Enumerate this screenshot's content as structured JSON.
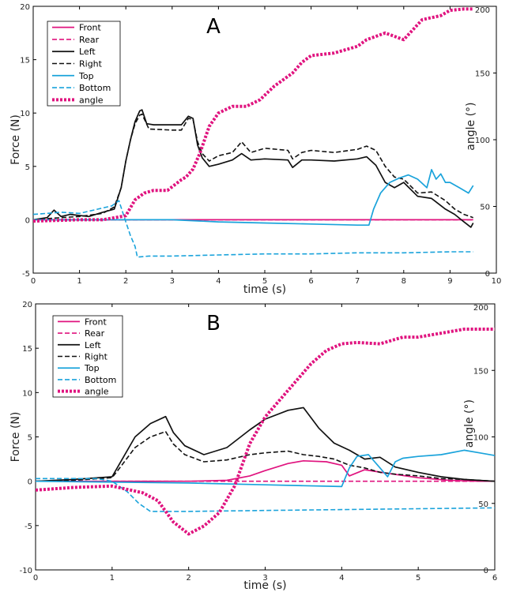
{
  "chart_data": [
    {
      "type": "line",
      "title": "A",
      "xlabel": "time (s)",
      "ylabel": "Force (N)",
      "y2label": "angle (°)",
      "xlim": [
        0,
        10
      ],
      "ylim": [
        -5,
        20
      ],
      "y2lim": [
        0,
        200
      ],
      "xticks": [
        0,
        1,
        2,
        3,
        4,
        5,
        6,
        7,
        8,
        9,
        10
      ],
      "yticks": [
        -5,
        0,
        5,
        10,
        15,
        20
      ],
      "y2ticks": [
        0,
        50,
        100,
        150,
        200
      ],
      "legend_position": "top-left",
      "series": [
        {
          "name": "Front",
          "color": "#e0147f",
          "dash": "solid",
          "axis": "left",
          "x": [
            0,
            1,
            2,
            3,
            4,
            5,
            6,
            7,
            8,
            9,
            9.5
          ],
          "y": [
            0,
            0,
            0,
            0,
            0,
            0,
            0,
            0,
            0,
            0,
            0
          ]
        },
        {
          "name": "Rear",
          "color": "#e0147f",
          "dash": "dashed",
          "axis": "left",
          "x": [
            0,
            1,
            2,
            3,
            4,
            5,
            6,
            7,
            8,
            9,
            9.5
          ],
          "y": [
            0,
            0,
            0,
            0,
            0,
            0,
            0,
            0,
            0,
            0,
            0
          ]
        },
        {
          "name": "Left",
          "color": "#111111",
          "dash": "solid",
          "axis": "left",
          "x": [
            0,
            0.3,
            0.45,
            0.6,
            0.8,
            1.0,
            1.2,
            1.5,
            1.75,
            1.9,
            2.0,
            2.1,
            2.2,
            2.3,
            2.35,
            2.45,
            2.6,
            3.0,
            3.2,
            3.35,
            3.45,
            3.55,
            3.65,
            3.8,
            4.0,
            4.3,
            4.5,
            4.7,
            5.0,
            5.5,
            5.6,
            5.8,
            6.0,
            6.5,
            7.0,
            7.2,
            7.4,
            7.6,
            7.8,
            8.0,
            8.3,
            8.6,
            8.9,
            9.1,
            9.3,
            9.45,
            9.5
          ],
          "y": [
            0,
            0.2,
            0.9,
            0.3,
            0.5,
            0.4,
            0.3,
            0.7,
            1.0,
            3,
            5.5,
            7.5,
            9.2,
            10.2,
            10.3,
            9.0,
            8.9,
            8.9,
            8.9,
            9.7,
            9.5,
            7.0,
            5.8,
            5.0,
            5.2,
            5.6,
            6.2,
            5.6,
            5.7,
            5.6,
            4.9,
            5.6,
            5.6,
            5.5,
            5.7,
            5.9,
            5.1,
            3.5,
            3.0,
            3.5,
            2.2,
            2.0,
            1.0,
            0.5,
            -0.2,
            -0.7,
            -0.3
          ]
        },
        {
          "name": "Right",
          "color": "#111111",
          "dash": "dashed",
          "axis": "left",
          "x": [
            0,
            0.3,
            0.6,
            1.0,
            1.5,
            1.75,
            1.9,
            2.0,
            2.1,
            2.2,
            2.3,
            2.35,
            2.5,
            3.0,
            3.2,
            3.35,
            3.45,
            3.55,
            3.65,
            3.8,
            4.0,
            4.3,
            4.5,
            4.7,
            5.0,
            5.5,
            5.6,
            5.8,
            6.0,
            6.5,
            7.0,
            7.2,
            7.4,
            7.6,
            7.8,
            8.0,
            8.3,
            8.6,
            8.9,
            9.1,
            9.3,
            9.5
          ],
          "y": [
            0,
            0.1,
            0.2,
            0.3,
            0.6,
            1.2,
            3,
            5.5,
            7.5,
            9.0,
            9.8,
            9.9,
            8.5,
            8.4,
            8.4,
            9.5,
            9.4,
            7.3,
            6.2,
            5.5,
            6.0,
            6.3,
            7.3,
            6.3,
            6.7,
            6.5,
            5.7,
            6.3,
            6.5,
            6.3,
            6.6,
            6.9,
            6.5,
            5.0,
            4.0,
            3.8,
            2.5,
            2.6,
            1.8,
            1.0,
            0.5,
            0.2
          ]
        },
        {
          "name": "Top",
          "color": "#1aa3db",
          "dash": "solid",
          "axis": "left",
          "x": [
            0,
            1,
            2,
            2.3,
            3,
            4,
            5,
            6,
            7,
            7.25,
            7.35,
            7.5,
            7.7,
            7.9,
            8.1,
            8.3,
            8.5,
            8.6,
            8.7,
            8.8,
            8.9,
            9.0,
            9.2,
            9.4,
            9.5
          ],
          "y": [
            0,
            0,
            0,
            0,
            0,
            -0.2,
            -0.3,
            -0.4,
            -0.5,
            -0.5,
            1.0,
            2.5,
            3.5,
            3.9,
            4.2,
            3.8,
            3.0,
            4.7,
            3.8,
            4.3,
            3.5,
            3.5,
            3.0,
            2.5,
            3.2
          ]
        },
        {
          "name": "Bottom",
          "color": "#1aa3db",
          "dash": "dashed",
          "axis": "left",
          "x": [
            0,
            0.3,
            0.6,
            1.0,
            1.4,
            1.7,
            1.85,
            2.0,
            2.1,
            2.2,
            2.25,
            2.5,
            3,
            4,
            5,
            6,
            7,
            8,
            9,
            9.5
          ],
          "y": [
            0.5,
            0.6,
            0.7,
            0.6,
            1.0,
            1.3,
            1.8,
            -0.2,
            -1.5,
            -2.5,
            -3.5,
            -3.4,
            -3.4,
            -3.3,
            -3.2,
            -3.2,
            -3.1,
            -3.1,
            -3.0,
            -3.0
          ]
        },
        {
          "name": "angle",
          "color": "#e0147f",
          "dash": "dotted",
          "axis": "right",
          "x": [
            0,
            1,
            1.5,
            2.0,
            2.2,
            2.4,
            2.6,
            2.9,
            3.2,
            3.3,
            3.45,
            3.6,
            3.8,
            4.0,
            4.3,
            4.6,
            4.9,
            5.2,
            5.4,
            5.6,
            5.8,
            6.0,
            6.5,
            7.0,
            7.2,
            7.6,
            8.0,
            8.4,
            8.8,
            9.0,
            9.3,
            9.5
          ],
          "y": [
            39,
            40,
            40,
            43,
            55,
            60,
            62,
            62,
            70,
            72,
            78,
            90,
            110,
            120,
            125,
            125,
            130,
            140,
            145,
            150,
            158,
            163,
            165,
            170,
            175,
            180,
            175,
            190,
            193,
            197,
            198,
            198
          ]
        }
      ]
    },
    {
      "type": "line",
      "title": "B",
      "xlabel": "time (s)",
      "ylabel": "Force (N)",
      "y2label": "angle (°)",
      "xlim": [
        0,
        6
      ],
      "ylim": [
        -10,
        20
      ],
      "y2lim": [
        0,
        200
      ],
      "xticks": [
        0,
        1,
        2,
        3,
        4,
        5,
        6
      ],
      "yticks": [
        -10,
        -5,
        0,
        5,
        10,
        15,
        20
      ],
      "y2ticks": [
        0,
        50,
        100,
        150,
        200
      ],
      "legend_position": "top-left",
      "series": [
        {
          "name": "Front",
          "color": "#e0147f",
          "dash": "solid",
          "axis": "left",
          "x": [
            0,
            1,
            2,
            2.5,
            2.8,
            3.0,
            3.3,
            3.5,
            3.8,
            4.0,
            4.1,
            4.3,
            4.6,
            5.0,
            5.4,
            5.8,
            6.0
          ],
          "y": [
            0,
            0,
            0,
            0.1,
            0.6,
            1.2,
            2.0,
            2.3,
            2.2,
            1.8,
            0.6,
            1.3,
            0.9,
            0.4,
            0.1,
            0,
            0
          ]
        },
        {
          "name": "Rear",
          "color": "#e0147f",
          "dash": "dashed",
          "axis": "left",
          "x": [
            0,
            1,
            2,
            3,
            4,
            5,
            6
          ],
          "y": [
            0,
            0,
            0,
            0,
            0,
            0,
            0
          ]
        },
        {
          "name": "Left",
          "color": "#111111",
          "dash": "solid",
          "axis": "left",
          "x": [
            0,
            0.5,
            1.0,
            1.1,
            1.3,
            1.5,
            1.7,
            1.8,
            1.95,
            2.2,
            2.5,
            2.8,
            3.0,
            3.3,
            3.5,
            3.7,
            3.9,
            4.1,
            4.3,
            4.5,
            4.7,
            5.0,
            5.3,
            5.6,
            6.0
          ],
          "y": [
            0,
            0.2,
            0.5,
            2,
            5,
            6.5,
            7.3,
            5.5,
            4.0,
            3.0,
            3.8,
            5.8,
            7.0,
            8.0,
            8.3,
            6.0,
            4.3,
            3.5,
            2.5,
            2.7,
            1.6,
            1.0,
            0.5,
            0.2,
            0
          ]
        },
        {
          "name": "Right",
          "color": "#111111",
          "dash": "dashed",
          "axis": "left",
          "x": [
            0,
            0.5,
            1.0,
            1.1,
            1.3,
            1.5,
            1.7,
            1.8,
            1.95,
            2.2,
            2.5,
            2.8,
            3.0,
            3.3,
            3.5,
            3.7,
            3.9,
            4.1,
            4.3,
            4.5,
            4.7,
            5.0,
            5.3,
            5.6,
            6.0
          ],
          "y": [
            0,
            0.1,
            0.4,
            1.5,
            3.8,
            5.0,
            5.6,
            4.2,
            3.0,
            2.2,
            2.4,
            3.0,
            3.2,
            3.4,
            3.0,
            2.8,
            2.5,
            1.8,
            1.5,
            1.0,
            0.8,
            0.6,
            0.3,
            0.2,
            0
          ]
        },
        {
          "name": "Top",
          "color": "#1aa3db",
          "dash": "solid",
          "axis": "left",
          "x": [
            0,
            1,
            2,
            3,
            3.5,
            4.0,
            4.1,
            4.2,
            4.35,
            4.5,
            4.6,
            4.7,
            4.8,
            5.0,
            5.3,
            5.6,
            5.8,
            6.0
          ],
          "y": [
            0,
            -0.1,
            -0.2,
            -0.4,
            -0.5,
            -0.6,
            1.5,
            2.8,
            3.0,
            1.5,
            0.5,
            2.2,
            2.6,
            2.8,
            3.0,
            3.5,
            3.2,
            2.9
          ]
        },
        {
          "name": "Bottom",
          "color": "#1aa3db",
          "dash": "dashed",
          "axis": "left",
          "x": [
            0,
            0.8,
            1.0,
            1.2,
            1.35,
            1.5,
            2.0,
            3.0,
            4.0,
            5.0,
            6.0
          ],
          "y": [
            0.3,
            0.3,
            0,
            -1.2,
            -2.5,
            -3.4,
            -3.4,
            -3.3,
            -3.2,
            -3.1,
            -3.0
          ]
        },
        {
          "name": "angle",
          "color": "#e0147f",
          "dash": "dotted",
          "axis": "right",
          "x": [
            0,
            0.5,
            1.0,
            1.4,
            1.6,
            1.8,
            2.0,
            2.2,
            2.4,
            2.6,
            2.8,
            3.0,
            3.3,
            3.6,
            3.8,
            4.0,
            4.2,
            4.5,
            4.8,
            5.0,
            5.3,
            5.6,
            6.0
          ],
          "y": [
            60,
            62,
            63,
            58,
            52,
            36,
            27,
            33,
            43,
            63,
            95,
            115,
            135,
            155,
            165,
            170,
            171,
            170,
            175,
            175,
            178,
            181,
            181
          ]
        }
      ]
    }
  ]
}
